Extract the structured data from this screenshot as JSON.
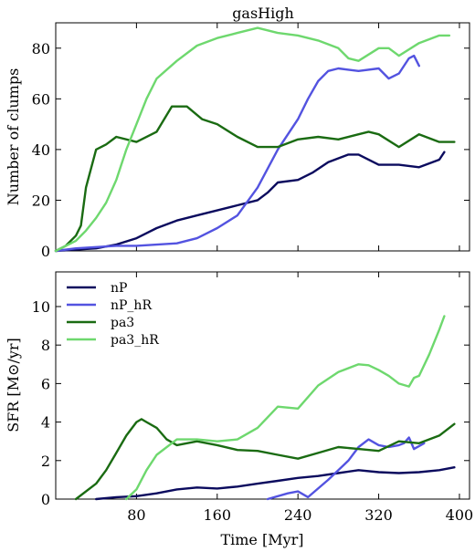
{
  "chart_data": [
    {
      "type": "line",
      "title": "gasHigh",
      "xlabel": "",
      "ylabel": "Number of clumps",
      "xlim": [
        0,
        410
      ],
      "ylim": [
        0,
        90
      ],
      "xticks": [
        80,
        160,
        240,
        320,
        400
      ],
      "yticks": [
        0,
        20,
        40,
        60,
        80
      ],
      "grid": false,
      "series": [
        {
          "name": "nP",
          "color": "#0b0b5e",
          "x": [
            0,
            20,
            40,
            60,
            80,
            100,
            120,
            140,
            160,
            180,
            200,
            210,
            220,
            240,
            255,
            270,
            290,
            300,
            320,
            340,
            360,
            380,
            385
          ],
          "y": [
            0,
            0.5,
            1,
            2.5,
            5,
            9,
            12,
            14,
            16,
            18,
            20,
            23,
            27,
            28,
            31,
            35,
            38,
            38,
            34,
            34,
            33,
            36,
            39
          ]
        },
        {
          "name": "nP_hR",
          "color": "#5353e0",
          "x": [
            0,
            20,
            40,
            60,
            80,
            100,
            120,
            140,
            160,
            180,
            200,
            220,
            240,
            250,
            260,
            270,
            280,
            290,
            300,
            320,
            330,
            340,
            350,
            355,
            360
          ],
          "y": [
            0,
            1,
            1.5,
            2,
            2,
            2.5,
            3,
            5,
            9,
            14,
            25,
            40,
            52,
            60,
            67,
            71,
            72,
            71.5,
            71,
            72,
            68,
            70,
            76,
            77,
            73
          ]
        },
        {
          "name": "pa3",
          "color": "#1a6b12",
          "x": [
            0,
            10,
            20,
            25,
            30,
            40,
            50,
            60,
            80,
            100,
            115,
            130,
            145,
            160,
            180,
            200,
            220,
            240,
            260,
            280,
            300,
            310,
            320,
            340,
            360,
            380,
            395
          ],
          "y": [
            0,
            2,
            6,
            10,
            25,
            40,
            42,
            45,
            43,
            47,
            57,
            57,
            52,
            50,
            45,
            41,
            41,
            44,
            45,
            44,
            46,
            47,
            46,
            41,
            46,
            43,
            43
          ]
        },
        {
          "name": "pa3_hR",
          "color": "#6ed86e",
          "x": [
            0,
            20,
            30,
            40,
            50,
            60,
            70,
            80,
            90,
            100,
            120,
            140,
            160,
            180,
            200,
            220,
            240,
            260,
            280,
            290,
            300,
            320,
            330,
            340,
            360,
            380,
            390
          ],
          "y": [
            0,
            4,
            8,
            13,
            19,
            28,
            40,
            50,
            60,
            68,
            75,
            81,
            84,
            86,
            88,
            86,
            85,
            83,
            80,
            76,
            75,
            80,
            80,
            77,
            82,
            85,
            85
          ]
        }
      ]
    },
    {
      "type": "line",
      "title": "",
      "xlabel": "Time [Myr]",
      "ylabel": "SFR  [M⊙/yr]",
      "xlim": [
        0,
        410
      ],
      "ylim": [
        0,
        11.8
      ],
      "xticks": [
        80,
        160,
        240,
        320,
        400
      ],
      "yticks": [
        0,
        2,
        4,
        6,
        8,
        10
      ],
      "grid": false,
      "legend": "top-left",
      "series": [
        {
          "name": "nP",
          "color": "#0b0b5e",
          "x": [
            40,
            60,
            80,
            100,
            120,
            140,
            160,
            180,
            200,
            220,
            240,
            260,
            280,
            300,
            320,
            340,
            360,
            380,
            395
          ],
          "y": [
            0,
            0.1,
            0.15,
            0.3,
            0.5,
            0.6,
            0.55,
            0.65,
            0.8,
            0.95,
            1.1,
            1.2,
            1.35,
            1.5,
            1.4,
            1.35,
            1.4,
            1.5,
            1.65
          ]
        },
        {
          "name": "nP_hR",
          "color": "#5353e0",
          "x": [
            210,
            230,
            240,
            250,
            270,
            290,
            300,
            310,
            320,
            330,
            340,
            345,
            350,
            355,
            365
          ],
          "y": [
            0,
            0.3,
            0.4,
            0.1,
            1,
            2,
            2.7,
            3.1,
            2.8,
            2.7,
            2.8,
            2.9,
            3.2,
            2.6,
            2.9
          ]
        },
        {
          "name": "pa3",
          "color": "#1a6b12",
          "x": [
            20,
            40,
            50,
            60,
            70,
            80,
            85,
            90,
            100,
            110,
            120,
            130,
            140,
            160,
            180,
            200,
            220,
            240,
            260,
            280,
            300,
            320,
            340,
            360,
            380,
            395
          ],
          "y": [
            0,
            0.8,
            1.5,
            2.4,
            3.3,
            4.0,
            4.15,
            4.0,
            3.7,
            3.1,
            2.8,
            2.9,
            3.0,
            2.8,
            2.55,
            2.5,
            2.3,
            2.1,
            2.4,
            2.7,
            2.6,
            2.5,
            3.0,
            2.9,
            3.3,
            3.9
          ]
        },
        {
          "name": "pa3_hR",
          "color": "#6ed86e",
          "x": [
            70,
            80,
            90,
            100,
            120,
            140,
            160,
            180,
            200,
            220,
            240,
            260,
            280,
            300,
            310,
            320,
            330,
            340,
            350,
            355,
            360,
            370,
            380,
            385
          ],
          "y": [
            0,
            0.5,
            1.5,
            2.3,
            3.1,
            3.1,
            3.0,
            3.1,
            3.7,
            4.8,
            4.7,
            5.9,
            6.6,
            7.0,
            6.95,
            6.7,
            6.4,
            6.0,
            5.85,
            6.3,
            6.4,
            7.5,
            8.8,
            9.5
          ]
        }
      ]
    }
  ]
}
